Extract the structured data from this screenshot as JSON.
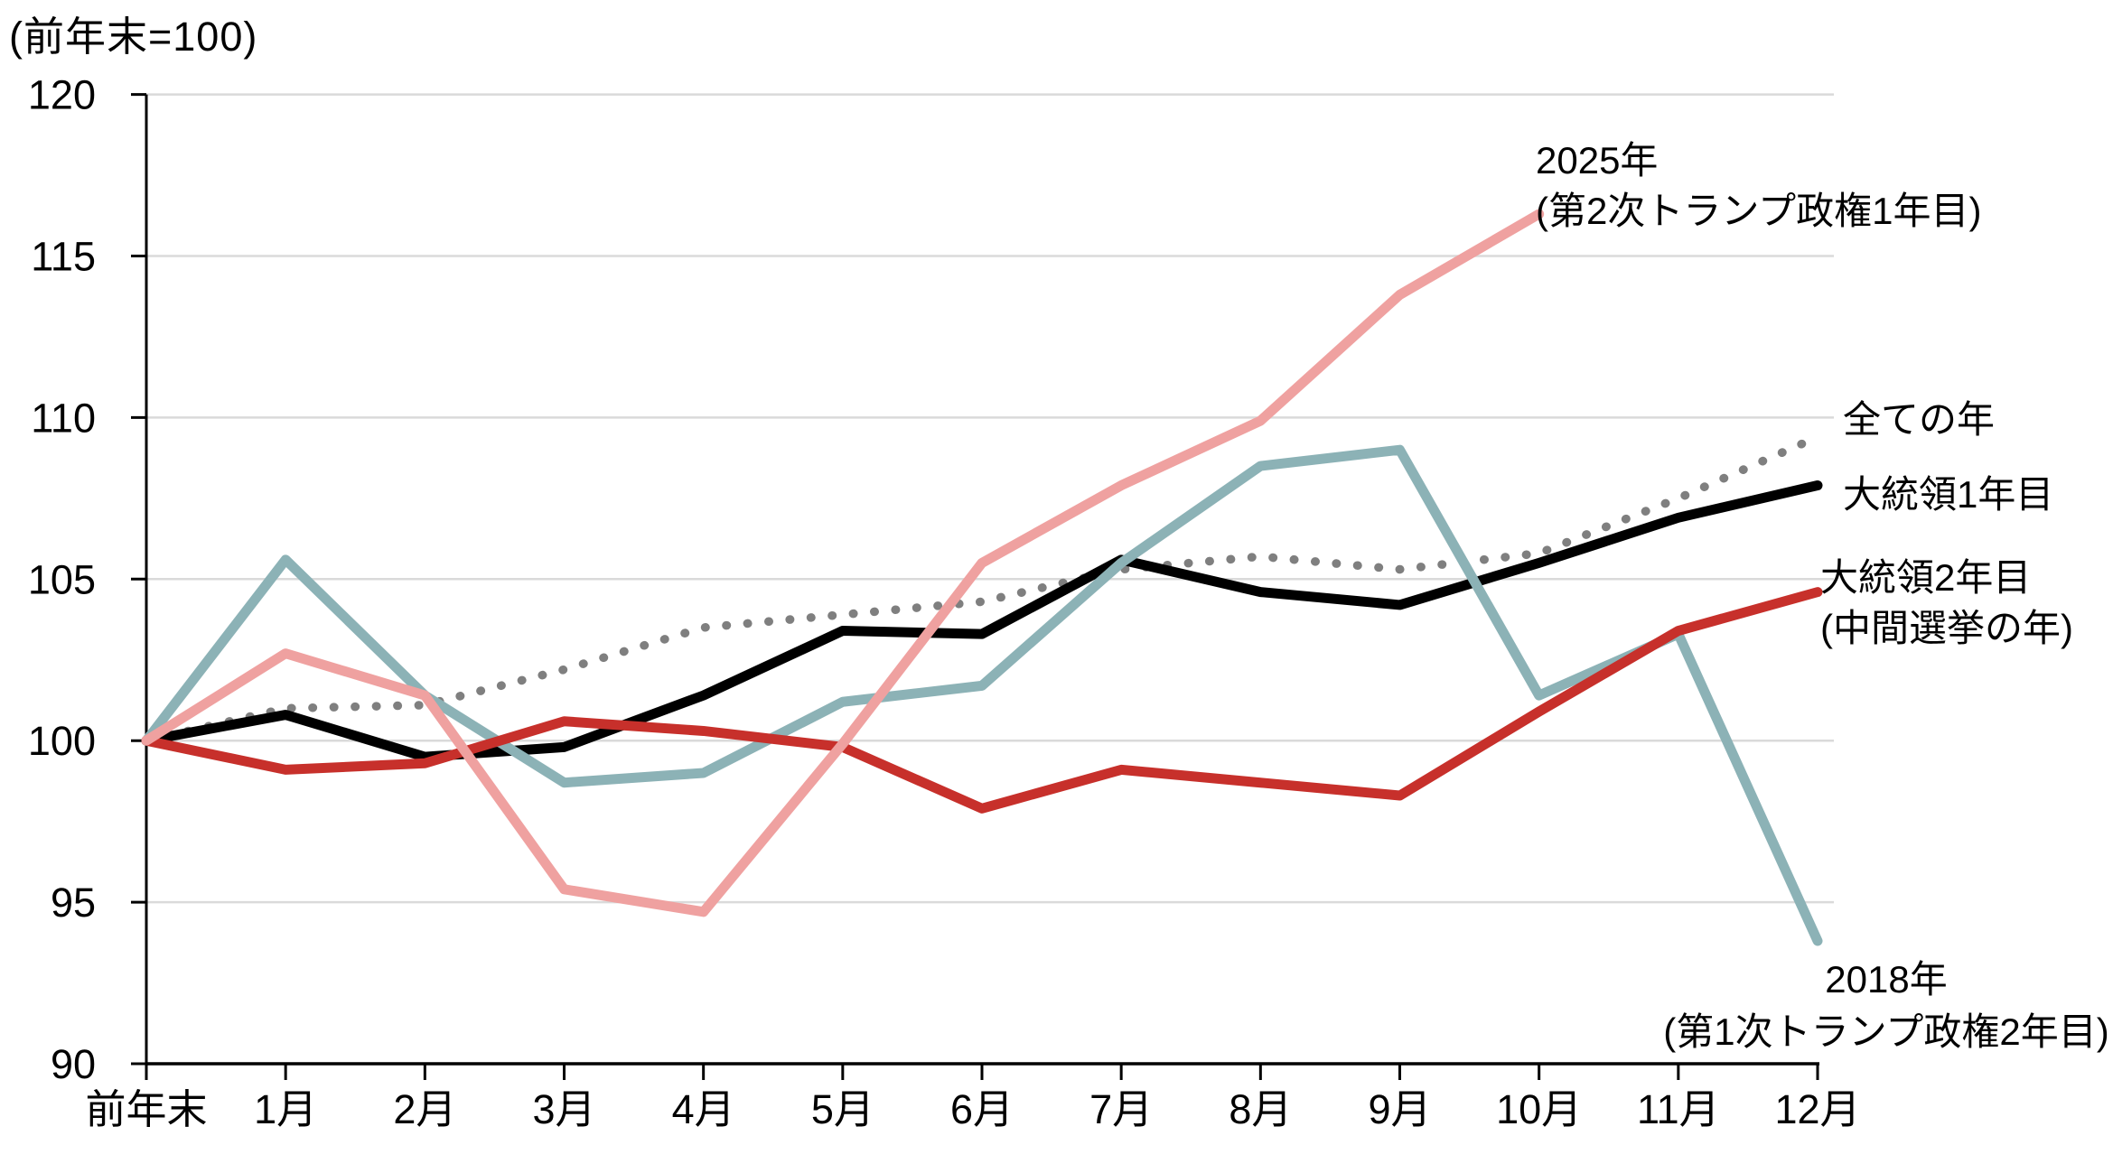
{
  "chart_data": {
    "type": "line",
    "title": "",
    "corner_label": "(前年末=100)",
    "xlabel": "",
    "ylabel": "(前年末=100)",
    "ylim": [
      90,
      120
    ],
    "yticks": [
      120,
      115,
      110,
      105,
      100,
      95,
      90
    ],
    "grid": "horizontal",
    "legend_position": "inline-annotations",
    "categories": [
      "前年末",
      "1月",
      "2月",
      "3月",
      "4月",
      "5月",
      "6月",
      "7月",
      "8月",
      "9月",
      "10月",
      "11月",
      "12月"
    ],
    "colors": {
      "all_years": "#7F7F7F",
      "president_year1": "#000000",
      "year2018": "#8CB2B6",
      "president_year2": "#C7302B",
      "year2025": "#EFA1A0",
      "gridline": "#DADADA",
      "axis": "#000000"
    },
    "series": [
      {
        "name": "全ての年",
        "style": "dotted",
        "color": "#7F7F7F",
        "label_lines": [
          "全ての年"
        ],
        "values": [
          100,
          101.0,
          101.1,
          102.2,
          103.5,
          103.9,
          104.3,
          105.3,
          105.7,
          105.3,
          105.8,
          107.5,
          109.4
        ]
      },
      {
        "name": "大統領1年目",
        "style": "solid",
        "color": "#000000",
        "label_lines": [
          "大統領1年目"
        ],
        "values": [
          100,
          100.8,
          99.5,
          99.8,
          101.4,
          103.4,
          103.3,
          105.6,
          104.6,
          104.2,
          105.5,
          106.9,
          107.9
        ]
      },
      {
        "name": "2018年(第1次トランプ政権2年目)",
        "style": "solid",
        "color": "#8CB2B6",
        "label_lines": [
          "2018年",
          "(第1次トランプ政権2年目)"
        ],
        "values": [
          100,
          105.6,
          101.4,
          98.7,
          99.0,
          101.2,
          101.7,
          105.5,
          108.5,
          109.0,
          101.4,
          103.3,
          93.8
        ]
      },
      {
        "name": "大統領2年目(中間選挙の年)",
        "style": "solid",
        "color": "#C7302B",
        "label_lines": [
          "大統領2年目",
          "(中間選挙の年)"
        ],
        "values": [
          100,
          99.1,
          99.3,
          100.6,
          100.3,
          99.8,
          97.9,
          99.1,
          98.7,
          98.3,
          100.9,
          103.4,
          104.6
        ]
      },
      {
        "name": "2025年(第2次トランプ政権1年目)",
        "style": "solid",
        "color": "#EFA1A0",
        "label_lines": [
          "2025年",
          "(第2次トランプ政権1年目)"
        ],
        "values": [
          100,
          102.7,
          101.4,
          95.4,
          94.7,
          99.9,
          105.5,
          107.9,
          109.9,
          113.8,
          116.3,
          null,
          null
        ]
      }
    ]
  }
}
